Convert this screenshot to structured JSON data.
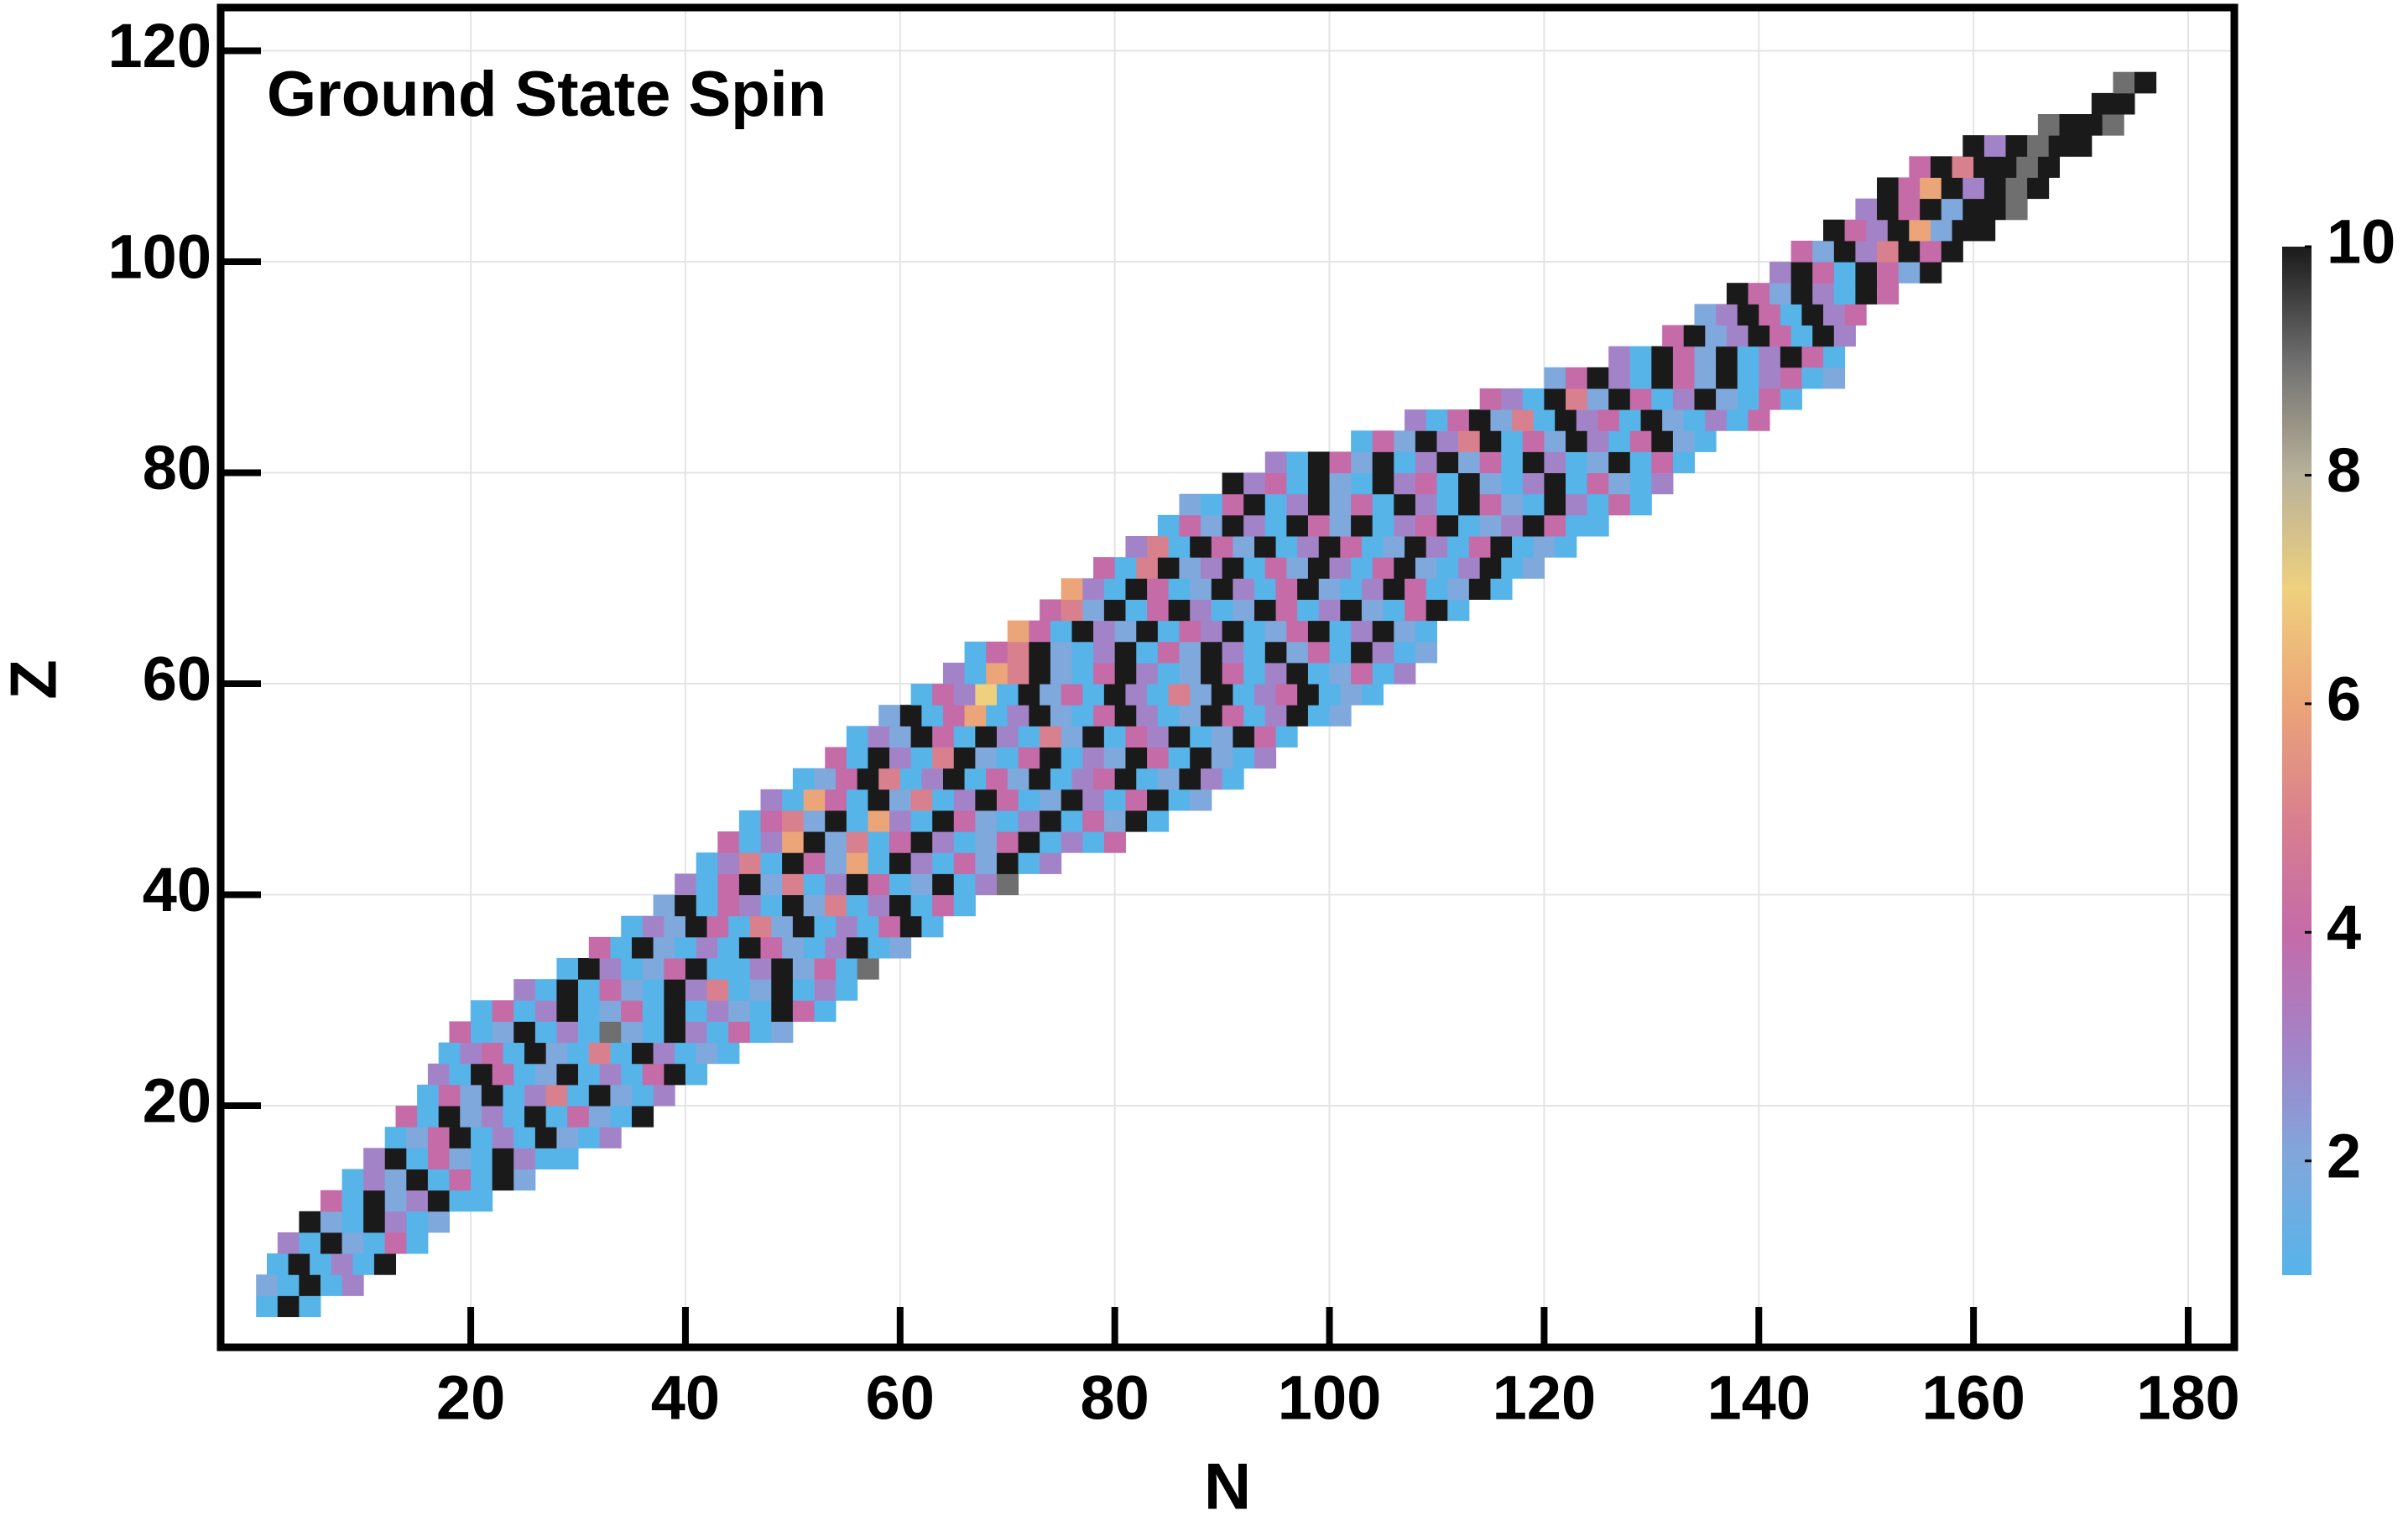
{
  "chart_data": {
    "type": "heatmap",
    "title": "Ground State Spin",
    "x_label": "N",
    "y_label": "Z",
    "xlim": [
      -3.3,
      184.3
    ],
    "ylim": [
      -2.9,
      124.1
    ],
    "xticks": [
      20,
      40,
      60,
      80,
      100,
      120,
      140,
      160,
      180
    ],
    "yticks": [
      20,
      40,
      60,
      80,
      100,
      120
    ],
    "grid": true,
    "title_color": "#ff0000",
    "colorbar": {
      "lim": [
        1,
        10
      ],
      "ticks": [
        2,
        4,
        6,
        8,
        10
      ],
      "colors": [
        "#56b4e9",
        "#7fa8dc",
        "#a383c8",
        "#c46ba8",
        "#d9808e",
        "#eba578",
        "#efd07e",
        "#b8b29a",
        "#6f6f6f",
        "#1a1a1a"
      ]
    },
    "rows": [
      {
        "z": 1,
        "n_start": 1,
        "values": [
          1,
          10,
          1
        ]
      },
      {
        "z": 3,
        "n_start": 1,
        "values": [
          2,
          1,
          10,
          1,
          3
        ]
      },
      {
        "z": 5,
        "n_start": 2,
        "values": [
          1,
          10,
          1,
          3,
          1,
          10
        ]
      },
      {
        "z": 7,
        "n_start": 3,
        "values": [
          3,
          1,
          10,
          2,
          1,
          4,
          1
        ]
      },
      {
        "z": 9,
        "n_start": 5,
        "values": [
          10,
          2,
          1,
          10,
          3,
          1,
          2
        ]
      },
      {
        "z": 11,
        "n_start": 7,
        "values": [
          4,
          1,
          10,
          2,
          3,
          10,
          1,
          1
        ]
      },
      {
        "z": 13,
        "n_start": 9,
        "values": [
          1,
          3,
          2,
          10,
          1,
          4,
          1,
          10,
          2
        ]
      },
      {
        "z": 15,
        "n_start": 11,
        "values": [
          3,
          10,
          1,
          4,
          2,
          1,
          10,
          3,
          1,
          1
        ]
      },
      {
        "z": 17,
        "n_start": 13,
        "values": [
          1,
          2,
          4,
          10,
          1,
          3,
          1,
          10,
          2,
          1,
          3
        ]
      },
      {
        "z": 19,
        "n_start": 14,
        "values": [
          4,
          1,
          10,
          2,
          3,
          1,
          10,
          1,
          4,
          2,
          1,
          10
        ]
      },
      {
        "z": 21,
        "n_start": 16,
        "values": [
          1,
          4,
          2,
          10,
          1,
          3,
          5,
          1,
          10,
          2,
          1,
          3
        ]
      },
      {
        "z": 23,
        "n_start": 17,
        "values": [
          3,
          1,
          10,
          4,
          1,
          2,
          10,
          1,
          3,
          1,
          4,
          10,
          1
        ]
      },
      {
        "z": 25,
        "n_start": 18,
        "values": [
          1,
          3,
          4,
          1,
          10,
          2,
          1,
          5,
          1,
          10,
          3,
          1,
          2,
          1
        ]
      },
      {
        "z": 27,
        "n_start": 19,
        "values": [
          4,
          1,
          2,
          10,
          1,
          3,
          1,
          9,
          2,
          1,
          10,
          3,
          1,
          4,
          1,
          2
        ]
      },
      {
        "z": 29,
        "n_start": 21,
        "values": [
          1,
          4,
          1,
          3,
          10,
          1,
          2,
          4,
          1,
          10,
          1,
          3,
          2,
          1,
          10,
          4,
          1
        ]
      },
      {
        "z": 31,
        "n_start": 25,
        "values": [
          3,
          1,
          10,
          1,
          4,
          2,
          1,
          10,
          3,
          5,
          1,
          2,
          10,
          1,
          3,
          1
        ]
      },
      {
        "z": 33,
        "n_start": 29,
        "values": [
          1,
          10,
          3,
          1,
          2,
          4,
          10,
          1,
          1,
          3,
          10,
          2,
          4,
          1,
          9
        ]
      },
      {
        "z": 35,
        "n_start": 32,
        "values": [
          4,
          1,
          10,
          2,
          1,
          3,
          1,
          10,
          4,
          2,
          1,
          3,
          10,
          1,
          2
        ]
      },
      {
        "z": 37,
        "n_start": 35,
        "values": [
          1,
          3,
          2,
          10,
          4,
          1,
          5,
          2,
          10,
          1,
          3,
          1,
          4,
          10,
          1
        ]
      },
      {
        "z": 39,
        "n_start": 38,
        "values": [
          2,
          10,
          1,
          4,
          3,
          1,
          10,
          2,
          5,
          1,
          3,
          10,
          1,
          4,
          1
        ]
      },
      {
        "z": 41,
        "n_start": 40,
        "values": [
          3,
          1,
          4,
          10,
          2,
          5,
          1,
          3,
          10,
          4,
          1,
          2,
          10,
          1,
          3,
          9
        ]
      },
      {
        "z": 43,
        "n_start": 42,
        "values": [
          1,
          3,
          5,
          1,
          10,
          4,
          2,
          6,
          1,
          10,
          3,
          1,
          4,
          2,
          10,
          1,
          3
        ]
      },
      {
        "z": 45,
        "n_start": 44,
        "values": [
          4,
          1,
          3,
          6,
          10,
          2,
          5,
          1,
          4,
          10,
          3,
          1,
          2,
          4,
          10,
          1,
          3,
          1,
          4
        ]
      },
      {
        "z": 47,
        "n_start": 46,
        "values": [
          1,
          4,
          5,
          2,
          10,
          1,
          6,
          3,
          1,
          10,
          4,
          2,
          1,
          3,
          10,
          1,
          4,
          2,
          10,
          1
        ]
      },
      {
        "z": 49,
        "n_start": 48,
        "values": [
          3,
          1,
          6,
          4,
          1,
          10,
          2,
          5,
          1,
          3,
          10,
          4,
          1,
          2,
          10,
          3,
          1,
          4,
          10,
          1,
          2
        ]
      },
      {
        "z": 51,
        "n_start": 51,
        "values": [
          1,
          2,
          4,
          10,
          5,
          1,
          3,
          10,
          1,
          4,
          2,
          10,
          1,
          3,
          4,
          10,
          1,
          2,
          10,
          3,
          1
        ]
      },
      {
        "z": 53,
        "n_start": 54,
        "values": [
          4,
          1,
          10,
          3,
          1,
          5,
          10,
          2,
          1,
          4,
          10,
          1,
          3,
          2,
          10,
          4,
          1,
          10,
          2,
          1,
          3
        ]
      },
      {
        "z": 55,
        "n_start": 56,
        "values": [
          1,
          3,
          2,
          10,
          4,
          1,
          10,
          3,
          1,
          5,
          2,
          10,
          1,
          4,
          3,
          10,
          1,
          2,
          10,
          4,
          1
        ]
      },
      {
        "z": 57,
        "n_start": 59,
        "values": [
          2,
          10,
          1,
          4,
          6,
          1,
          3,
          10,
          2,
          1,
          4,
          10,
          3,
          1,
          2,
          10,
          4,
          1,
          3,
          10,
          1,
          2
        ]
      },
      {
        "z": 59,
        "n_start": 62,
        "values": [
          1,
          4,
          3,
          7,
          1,
          10,
          2,
          4,
          1,
          10,
          3,
          1,
          5,
          2,
          10,
          1,
          3,
          4,
          10,
          1,
          2,
          1
        ]
      },
      {
        "z": 61,
        "n_start": 65,
        "values": [
          3,
          1,
          6,
          5,
          10,
          2,
          1,
          4,
          10,
          3,
          1,
          2,
          10,
          4,
          1,
          3,
          10,
          1,
          2,
          4,
          1,
          3
        ]
      },
      {
        "z": 63,
        "n_start": 67,
        "values": [
          1,
          4,
          5,
          10,
          2,
          1,
          3,
          10,
          1,
          4,
          2,
          10,
          3,
          1,
          10,
          2,
          4,
          1,
          10,
          3,
          1,
          2
        ]
      },
      {
        "z": 65,
        "n_start": 71,
        "values": [
          6,
          4,
          1,
          10,
          3,
          2,
          10,
          1,
          4,
          3,
          10,
          1,
          2,
          4,
          10,
          1,
          3,
          10,
          2,
          1
        ]
      },
      {
        "z": 67,
        "n_start": 74,
        "values": [
          4,
          5,
          2,
          10,
          1,
          4,
          10,
          3,
          1,
          2,
          10,
          4,
          1,
          3,
          10,
          2,
          1,
          4,
          10,
          1
        ]
      },
      {
        "z": 69,
        "n_start": 76,
        "values": [
          6,
          3,
          1,
          10,
          4,
          1,
          2,
          10,
          3,
          1,
          4,
          10,
          2,
          1,
          3,
          10,
          4,
          1,
          2,
          10,
          1
        ]
      },
      {
        "z": 71,
        "n_start": 79,
        "values": [
          4,
          1,
          5,
          10,
          2,
          3,
          10,
          1,
          4,
          2,
          10,
          3,
          1,
          4,
          10,
          2,
          1,
          3,
          10,
          1,
          2
        ]
      },
      {
        "z": 73,
        "n_start": 82,
        "values": [
          3,
          5,
          1,
          10,
          4,
          2,
          10,
          1,
          3,
          10,
          4,
          1,
          2,
          10,
          3,
          1,
          4,
          10,
          1,
          2,
          1
        ]
      },
      {
        "z": 75,
        "n_start": 85,
        "values": [
          1,
          4,
          2,
          10,
          3,
          1,
          10,
          4,
          2,
          10,
          1,
          3,
          4,
          10,
          1,
          2,
          3,
          10,
          4,
          1,
          1
        ]
      },
      {
        "z": 77,
        "n_start": 87,
        "values": [
          2,
          1,
          4,
          10,
          1,
          3,
          10,
          2,
          4,
          1,
          10,
          3,
          1,
          10,
          4,
          2,
          1,
          10,
          3,
          1,
          4,
          1
        ]
      },
      {
        "z": 79,
        "n_start": 91,
        "values": [
          10,
          3,
          4,
          1,
          10,
          2,
          1,
          10,
          3,
          4,
          1,
          10,
          2,
          1,
          3,
          10,
          1,
          4,
          2,
          1,
          3
        ]
      },
      {
        "z": 81,
        "n_start": 95,
        "values": [
          3,
          1,
          10,
          4,
          2,
          10,
          1,
          3,
          10,
          2,
          4,
          1,
          10,
          3,
          1,
          2,
          10,
          1,
          4,
          1
        ]
      },
      {
        "z": 83,
        "n_start": 103,
        "values": [
          1,
          4,
          2,
          10,
          3,
          5,
          10,
          1,
          4,
          2,
          10,
          3,
          1,
          4,
          10,
          2,
          1
        ]
      },
      {
        "z": 85,
        "n_start": 108,
        "values": [
          3,
          1,
          4,
          10,
          2,
          5,
          1,
          10,
          3,
          4,
          1,
          10,
          2,
          1,
          3,
          1,
          4
        ]
      },
      {
        "z": 87,
        "n_start": 115,
        "values": [
          4,
          3,
          1,
          10,
          5,
          2,
          10,
          4,
          1,
          3,
          10,
          2,
          1,
          4,
          1
        ]
      },
      {
        "z": 89,
        "n_start": 121,
        "values": [
          2,
          4,
          10,
          3,
          1,
          10,
          4,
          2,
          10,
          1,
          3,
          4,
          1,
          2
        ]
      },
      {
        "z": 91,
        "n_start": 127,
        "values": [
          3,
          1,
          10,
          4,
          2,
          10,
          1,
          3,
          10,
          4,
          1
        ]
      },
      {
        "z": 93,
        "n_start": 132,
        "values": [
          4,
          10,
          2,
          3,
          10,
          4,
          1,
          10,
          3
        ]
      },
      {
        "z": 95,
        "n_start": 135,
        "values": [
          2,
          3,
          10,
          4,
          1,
          10,
          3,
          4
        ]
      },
      {
        "z": 97,
        "n_start": 138,
        "values": [
          10,
          4,
          2,
          10,
          3,
          1,
          10,
          4
        ]
      },
      {
        "z": 99,
        "n_start": 142,
        "values": [
          3,
          10,
          4,
          1,
          10,
          4,
          2,
          10
        ]
      },
      {
        "z": 101,
        "n_start": 144,
        "values": [
          4,
          2,
          10,
          3,
          5,
          10,
          4,
          10
        ]
      },
      {
        "z": 103,
        "n_start": 147,
        "values": [
          10,
          4,
          3,
          10,
          6,
          2,
          10,
          10
        ]
      },
      {
        "z": 105,
        "n_start": 150,
        "values": [
          3,
          10,
          4,
          10,
          2,
          10,
          10,
          9
        ]
      },
      {
        "z": 107,
        "n_start": 152,
        "values": [
          10,
          4,
          6,
          10,
          3,
          10,
          9,
          10
        ]
      },
      {
        "z": 109,
        "n_start": 155,
        "values": [
          4,
          10,
          5,
          10,
          10,
          9,
          10
        ]
      },
      {
        "z": 111,
        "n_start": 160,
        "values": [
          10,
          3,
          10,
          9,
          10,
          10
        ]
      },
      {
        "z": 113,
        "n_start": 167,
        "values": [
          9,
          10,
          10,
          9
        ]
      },
      {
        "z": 115,
        "n_start": 172,
        "values": [
          10,
          10
        ]
      },
      {
        "z": 117,
        "n_start": 174,
        "values": [
          9,
          10
        ]
      }
    ]
  }
}
